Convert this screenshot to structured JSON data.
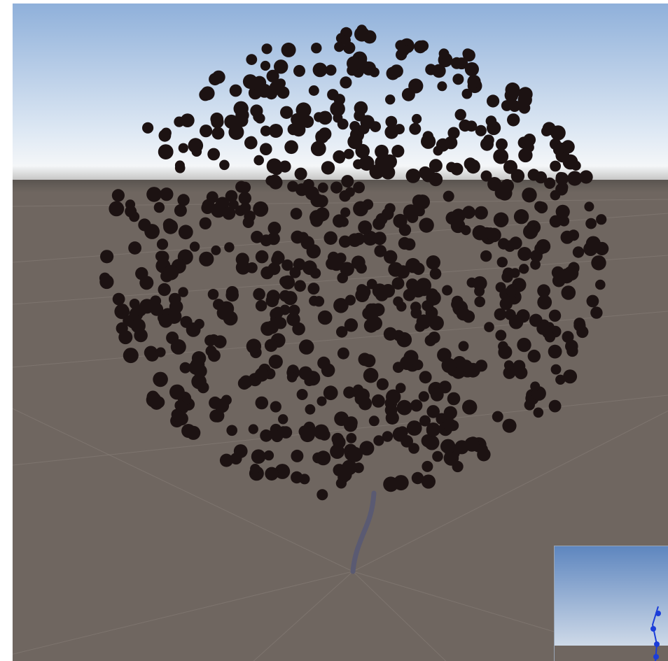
{
  "window": {
    "title": ""
  },
  "scene": {
    "sky_top": "#8fb0da",
    "sky_mid": "#dfe9f4",
    "horizon_band": "#f4f6f8",
    "ground": "#6f6660",
    "grid_line": "#8a807a",
    "particle_color": "#1c1212",
    "trunk_color": "#5a5a72",
    "particle_count": 760,
    "random_seed": 42
  },
  "camera_preview": {
    "sky_top": "#5e86bf",
    "sky_bottom": "#dfe6ee",
    "ground": "#6f6660",
    "gizmo_color": "#1b3dd9"
  }
}
